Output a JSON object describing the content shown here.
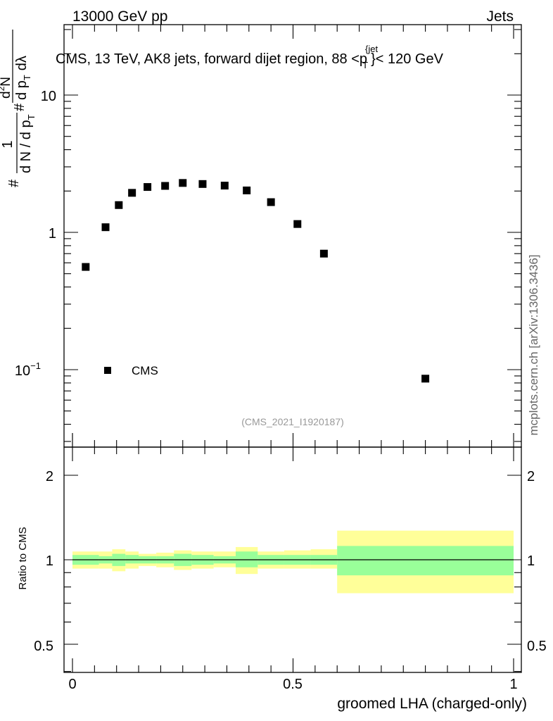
{
  "header": {
    "energy_label": "13000 GeV pp",
    "category_label": "Jets",
    "side_label": "mcplots.cern.ch [arXiv:1306.3436]"
  },
  "main_plot": {
    "title_prefix": "CMS, 13 TeV, AK8 jets, forward dijet region, 88 <",
    "title_p": "p",
    "title_sub": "T",
    "title_sup": "{jet",
    "title_suffix": "}< 120 GeV",
    "ylabel": {
      "hash1": "#",
      "one": "1",
      "dn_dpt": "d N / d p",
      "dn_dpt_sub": "T",
      "hash2": "#",
      "d2n": "d",
      "d2n_sup": "2",
      "d2n_n": "N",
      "dpt_dl": "d p",
      "dpt_dl_sub": "T",
      "dlambda": "dλ"
    },
    "ytick_labels": {
      "ten": "10",
      "one": "1",
      "tenth_base": "10",
      "tenth_exp": "−1"
    },
    "legend_label": "CMS",
    "watermark": "(CMS_2021_I1920187)"
  },
  "ratio_plot": {
    "ylabel": "Ratio to CMS",
    "ytick_labels_left": [
      "2",
      "1",
      "0.5"
    ],
    "ytick_labels_right": [
      "2",
      "1",
      "0.5"
    ],
    "xtick_labels": [
      "0",
      "0.5",
      "1"
    ],
    "xlabel": "groomed LHA (charged-only)"
  },
  "colors": {
    "inner_band": "#99ff99",
    "outer_band": "#ffff99",
    "marker": "#000000"
  },
  "chart_data": [
    {
      "type": "scatter",
      "title": "CMS, 13 TeV, AK8 jets, forward dijet region, 88 < p_T^{jet} < 120 GeV",
      "xlabel": "groomed LHA (charged-only)",
      "ylabel": "1/(dN/dp_T) d2N/(dp_T dλ)",
      "yscale": "log",
      "xlim": [
        -0.02,
        1.0
      ],
      "ylim": [
        0.028,
        32
      ],
      "series": [
        {
          "name": "CMS",
          "x": [
            0.03,
            0.075,
            0.105,
            0.135,
            0.17,
            0.21,
            0.25,
            0.295,
            0.345,
            0.395,
            0.45,
            0.51,
            0.57,
            0.8
          ],
          "y": [
            0.56,
            1.09,
            1.58,
            1.94,
            2.14,
            2.18,
            2.29,
            2.25,
            2.19,
            2.02,
            1.66,
            1.15,
            0.7,
            0.086
          ]
        }
      ]
    },
    {
      "type": "area",
      "title": "Ratio to CMS",
      "yscale": "log",
      "ylim": [
        0.4,
        2.3
      ],
      "x_edges": [
        0.0,
        0.06,
        0.09,
        0.12,
        0.15,
        0.19,
        0.23,
        0.27,
        0.32,
        0.37,
        0.42,
        0.48,
        0.54,
        0.6,
        1.0
      ],
      "inner_lo": [
        0.96,
        0.97,
        0.95,
        0.97,
        0.97,
        0.97,
        0.95,
        0.96,
        0.97,
        0.94,
        0.96,
        0.96,
        0.96,
        0.88
      ],
      "inner_hi": [
        1.04,
        1.03,
        1.05,
        1.04,
        1.03,
        1.03,
        1.05,
        1.04,
        1.03,
        1.07,
        1.04,
        1.04,
        1.04,
        1.12
      ],
      "outer_lo": [
        0.93,
        0.93,
        0.91,
        0.93,
        0.95,
        0.94,
        0.92,
        0.93,
        0.94,
        0.89,
        0.93,
        0.93,
        0.93,
        0.76
      ],
      "outer_hi": [
        1.07,
        1.07,
        1.09,
        1.07,
        1.05,
        1.06,
        1.08,
        1.07,
        1.07,
        1.11,
        1.07,
        1.08,
        1.09,
        1.27
      ],
      "reference_line": 1.0
    }
  ]
}
